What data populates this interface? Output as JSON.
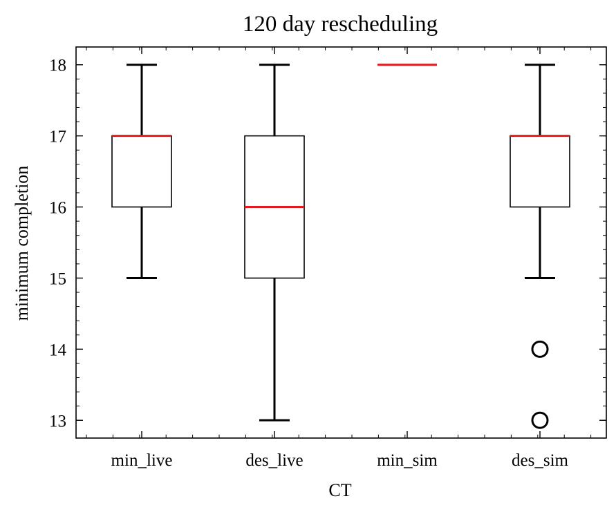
{
  "chart_data": {
    "type": "box",
    "title": "120 day rescheduling",
    "xlabel": "CT",
    "ylabel": "minimum completion",
    "ylim": [
      12.75,
      18.25
    ],
    "yticks": [
      13,
      14,
      15,
      16,
      17,
      18
    ],
    "grid": false,
    "categories": [
      "min_live",
      "des_live",
      "min_sim",
      "des_sim"
    ],
    "boxes": [
      {
        "category": "min_live",
        "whisker_low": 15,
        "q1": 16,
        "median": 17,
        "q3": 17,
        "whisker_high": 18,
        "outliers": []
      },
      {
        "category": "des_live",
        "whisker_low": 13,
        "q1": 15,
        "median": 16,
        "q3": 17,
        "whisker_high": 18,
        "outliers": []
      },
      {
        "category": "min_sim",
        "whisker_low": 18,
        "q1": 18,
        "median": 18,
        "q3": 18,
        "whisker_high": 18,
        "outliers": []
      },
      {
        "category": "des_sim",
        "whisker_low": 15,
        "q1": 16,
        "median": 17,
        "q3": 17,
        "whisker_high": 18,
        "outliers": [
          14,
          13
        ]
      }
    ],
    "colors": {
      "median": "#e41a1c",
      "box": "#000000",
      "whisker": "#000000"
    }
  }
}
